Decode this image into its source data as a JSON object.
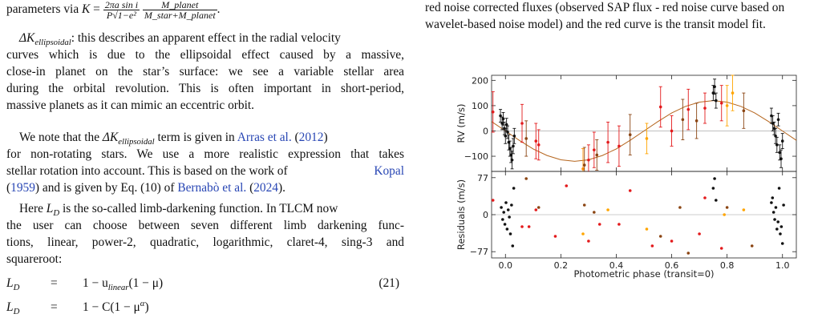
{
  "left_column": {
    "formula_line": {
      "prefix": "parameters via ",
      "lhs": "K",
      "eq": "=",
      "frac1_num": "2πa sin i",
      "frac1_den": "P√1−e²",
      "frac2_num": "M_planet",
      "frac2_den": "M_star+M_planet",
      "suffix": "."
    },
    "ellipsoidal_term": {
      "symbol": "ΔK",
      "subscript": "ellipsoidal",
      "lines": [
        ": this describes an apparent effect in the radial velocity",
        "curves which is due to the ellipsoidal effect caused by a massive,",
        "close-in planet on the star’s surface: we see a variable stellar area",
        "during the orbital revolution. This is often important in short-period,",
        "massive planets as it can mimic an eccentric orbit."
      ]
    },
    "note_paragraph": {
      "l1_a": "We note that the ",
      "l1_sym": "ΔK",
      "l1_sub": "ellipsoidal",
      "l1_b": " term is given in ",
      "l1_cite": "Arras et al.",
      "l1_c": " (",
      "l1_year": "2012",
      "l1_d": ")",
      "l2": "for non-rotating stars. We use a more realistic expression that takes",
      "l3_a": "stellar rotation into account. This is based on the work of ",
      "l3_cite": "Kopal",
      "l4_a": "(",
      "l4_year": "1959",
      "l4_b": ") and is given by Eq. (10) of ",
      "l4_cite": "Bernabò et al.",
      "l4_c": " (",
      "l4_year2": "2024",
      "l4_d": ")."
    },
    "limb_paragraph": {
      "l1_a": "Here ",
      "l1_sym": "L",
      "l1_sub": "D",
      "l1_b": " is the so-called limb-darkening function. In TLCM now",
      "l2": "the user can choose between seven different limb darkening func-",
      "l3": "tions, linear, power-2, quadratic, logarithmic, claret-4, sing-3 and",
      "l4": "squareroot:"
    },
    "equations": [
      {
        "lhs": "L",
        "lhs_sub": "D",
        "op": "=",
        "rhs_a": "1 − u",
        "rhs_sub": "linear",
        "rhs_b": "(1 − μ)",
        "number": "(21)"
      },
      {
        "lhs": "L",
        "lhs_sub": "D",
        "op": "=",
        "rhs_a": "1 − C(1 − μ",
        "rhs_sup": "α",
        "rhs_b": ")",
        "number": ""
      }
    ]
  },
  "right_column": {
    "caption_lines": [
      "red noise corrected fluxes (observed SAP flux - red noise curve based on",
      "wavelet-based noise model) and the red curve is the transit model fit."
    ]
  },
  "chart_data": {
    "type": "scatter",
    "title": "",
    "xlabel": "Photometric phase (transit=0)",
    "x_ticks": [
      "0.0",
      "0.2",
      "0.4",
      "0.6",
      "0.8",
      "1.0"
    ],
    "xlim": [
      -0.05,
      1.05
    ],
    "panels": [
      {
        "name": "rv",
        "ylabel": "RV (m/s)",
        "ylim": [
          -160,
          220
        ],
        "y_ticks": [
          "200",
          "100",
          "0",
          "−100"
        ],
        "y_tick_values": [
          200,
          100,
          0,
          -100
        ],
        "model_color": "#b5651d",
        "model_amplitude": 120,
        "model_x": [
          -0.05,
          0.0,
          0.05,
          0.1,
          0.15,
          0.2,
          0.25,
          0.3,
          0.35,
          0.4,
          0.45,
          0.5,
          0.55,
          0.6,
          0.65,
          0.7,
          0.75,
          0.8,
          0.85,
          0.9,
          0.95,
          1.0,
          1.05
        ],
        "model_y": [
          37,
          0,
          -37,
          -71,
          -97,
          -114,
          -120,
          -114,
          -97,
          -71,
          -37,
          0,
          37,
          71,
          97,
          114,
          120,
          114,
          97,
          71,
          37,
          0,
          -37
        ],
        "points": [
          {
            "x": -0.045,
            "y": 75,
            "err": 80,
            "c": "#e31a1c"
          },
          {
            "x": -0.018,
            "y": 60,
            "err": 25,
            "c": "#111111"
          },
          {
            "x": -0.012,
            "y": 30,
            "err": 25,
            "c": "#111111"
          },
          {
            "x": -0.008,
            "y": 48,
            "err": 25,
            "c": "#111111"
          },
          {
            "x": -0.004,
            "y": 10,
            "err": 25,
            "c": "#111111"
          },
          {
            "x": 0.0,
            "y": -20,
            "err": 30,
            "c": "#111111"
          },
          {
            "x": 0.004,
            "y": 25,
            "err": 25,
            "c": "#111111"
          },
          {
            "x": 0.008,
            "y": -5,
            "err": 25,
            "c": "#111111"
          },
          {
            "x": 0.012,
            "y": -45,
            "err": 30,
            "c": "#111111"
          },
          {
            "x": 0.016,
            "y": -70,
            "err": 30,
            "c": "#111111"
          },
          {
            "x": 0.02,
            "y": -95,
            "err": 30,
            "c": "#111111"
          },
          {
            "x": 0.024,
            "y": -115,
            "err": 35,
            "c": "#111111"
          },
          {
            "x": 0.028,
            "y": -60,
            "err": 30,
            "c": "#111111"
          },
          {
            "x": 0.032,
            "y": -20,
            "err": 30,
            "c": "#111111"
          },
          {
            "x": 0.06,
            "y": 30,
            "err": 75,
            "c": "#e31a1c"
          },
          {
            "x": 0.075,
            "y": -30,
            "err": 70,
            "c": "#8b4513"
          },
          {
            "x": 0.11,
            "y": -40,
            "err": 70,
            "c": "#e31a1c"
          },
          {
            "x": 0.12,
            "y": -55,
            "err": 60,
            "c": "#e31a1c"
          },
          {
            "x": 0.28,
            "y": -150,
            "err": 80,
            "c": "#ff8c00"
          },
          {
            "x": 0.285,
            "y": -135,
            "err": 70,
            "c": "#8b4513"
          },
          {
            "x": 0.3,
            "y": -115,
            "err": 60,
            "c": "#e31a1c"
          },
          {
            "x": 0.32,
            "y": -75,
            "err": 70,
            "c": "#e31a1c"
          },
          {
            "x": 0.33,
            "y": -95,
            "err": 60,
            "c": "#8b4513"
          },
          {
            "x": 0.37,
            "y": -45,
            "err": 80,
            "c": "#e31a1c"
          },
          {
            "x": 0.41,
            "y": -60,
            "err": 80,
            "c": "#e31a1c"
          },
          {
            "x": 0.45,
            "y": -15,
            "err": 80,
            "c": "#8b4513"
          },
          {
            "x": 0.51,
            "y": -30,
            "err": 60,
            "c": "#ffa500"
          },
          {
            "x": 0.56,
            "y": 95,
            "err": 80,
            "c": "#e31a1c"
          },
          {
            "x": 0.6,
            "y": 0,
            "err": 60,
            "c": "#e31a1c"
          },
          {
            "x": 0.64,
            "y": 45,
            "err": 80,
            "c": "#8b4513"
          },
          {
            "x": 0.66,
            "y": 85,
            "err": 80,
            "c": "#e31a1c"
          },
          {
            "x": 0.69,
            "y": 40,
            "err": 70,
            "c": "#8b4513"
          },
          {
            "x": 0.72,
            "y": 90,
            "err": 60,
            "c": "#e31a1c"
          },
          {
            "x": 0.75,
            "y": 150,
            "err": 30,
            "c": "#111111"
          },
          {
            "x": 0.755,
            "y": 175,
            "err": 30,
            "c": "#111111"
          },
          {
            "x": 0.76,
            "y": 120,
            "err": 30,
            "c": "#111111"
          },
          {
            "x": 0.78,
            "y": 110,
            "err": 70,
            "c": "#e31a1c"
          },
          {
            "x": 0.8,
            "y": 100,
            "err": 80,
            "c": "#ffa500"
          },
          {
            "x": 0.82,
            "y": 150,
            "err": 70,
            "c": "#ffa500"
          },
          {
            "x": 0.86,
            "y": 80,
            "err": 70,
            "c": "#8b4513"
          },
          {
            "x": 0.96,
            "y": 60,
            "err": 30,
            "c": "#111111"
          },
          {
            "x": 0.965,
            "y": 30,
            "err": 30,
            "c": "#111111"
          },
          {
            "x": 0.97,
            "y": 10,
            "err": 25,
            "c": "#111111"
          },
          {
            "x": 0.975,
            "y": -20,
            "err": 30,
            "c": "#111111"
          },
          {
            "x": 0.98,
            "y": -55,
            "err": 30,
            "c": "#111111"
          },
          {
            "x": 0.985,
            "y": 45,
            "err": 25,
            "c": "#111111"
          },
          {
            "x": 0.99,
            "y": -85,
            "err": 30,
            "c": "#111111"
          },
          {
            "x": 0.995,
            "y": -110,
            "err": 35,
            "c": "#111111"
          },
          {
            "x": 1.0,
            "y": -40,
            "err": 30,
            "c": "#111111"
          }
        ]
      },
      {
        "name": "residuals",
        "ylabel": "Residuals (m/s)",
        "ylim": [
          -90,
          90
        ],
        "y_ticks": [
          "77",
          "0",
          "−77"
        ],
        "y_tick_values": [
          77,
          0,
          -77
        ],
        "points": [
          {
            "x": -0.045,
            "y": 30,
            "c": "#e31a1c"
          },
          {
            "x": -0.015,
            "y": 15,
            "c": "#111111"
          },
          {
            "x": -0.01,
            "y": -10,
            "c": "#111111"
          },
          {
            "x": -0.006,
            "y": 5,
            "c": "#111111"
          },
          {
            "x": -0.002,
            "y": -20,
            "c": "#111111"
          },
          {
            "x": 0.002,
            "y": 25,
            "c": "#111111"
          },
          {
            "x": 0.006,
            "y": -30,
            "c": "#111111"
          },
          {
            "x": 0.01,
            "y": 10,
            "c": "#111111"
          },
          {
            "x": 0.014,
            "y": -5,
            "c": "#111111"
          },
          {
            "x": 0.018,
            "y": -40,
            "c": "#111111"
          },
          {
            "x": 0.022,
            "y": 20,
            "c": "#111111"
          },
          {
            "x": 0.026,
            "y": -65,
            "c": "#111111"
          },
          {
            "x": 0.03,
            "y": 55,
            "c": "#111111"
          },
          {
            "x": 0.06,
            "y": -25,
            "c": "#e31a1c"
          },
          {
            "x": 0.075,
            "y": 75,
            "c": "#8b4513"
          },
          {
            "x": 0.085,
            "y": -25,
            "c": "#e31a1c"
          },
          {
            "x": 0.11,
            "y": 10,
            "c": "#e31a1c"
          },
          {
            "x": 0.12,
            "y": 15,
            "c": "#8b4513"
          },
          {
            "x": 0.18,
            "y": -45,
            "c": "#e31a1c"
          },
          {
            "x": 0.22,
            "y": 60,
            "c": "#e31a1c"
          },
          {
            "x": 0.28,
            "y": -40,
            "c": "#ffa500"
          },
          {
            "x": 0.285,
            "y": 20,
            "c": "#8b4513"
          },
          {
            "x": 0.3,
            "y": -55,
            "c": "#e31a1c"
          },
          {
            "x": 0.32,
            "y": 5,
            "c": "#8b4513"
          },
          {
            "x": 0.34,
            "y": -20,
            "c": "#e31a1c"
          },
          {
            "x": 0.37,
            "y": 10,
            "c": "#ffa500"
          },
          {
            "x": 0.41,
            "y": -20,
            "c": "#e31a1c"
          },
          {
            "x": 0.45,
            "y": 50,
            "c": "#e31a1c"
          },
          {
            "x": 0.51,
            "y": -30,
            "c": "#ffa500"
          },
          {
            "x": 0.53,
            "y": -65,
            "c": "#e31a1c"
          },
          {
            "x": 0.56,
            "y": -45,
            "c": "#8b4513"
          },
          {
            "x": 0.6,
            "y": -55,
            "c": "#e31a1c"
          },
          {
            "x": 0.63,
            "y": 15,
            "c": "#8b4513"
          },
          {
            "x": 0.66,
            "y": -80,
            "c": "#8b4513"
          },
          {
            "x": 0.7,
            "y": -40,
            "c": "#e31a1c"
          },
          {
            "x": 0.72,
            "y": 35,
            "c": "#e31a1c"
          },
          {
            "x": 0.75,
            "y": 55,
            "c": "#111111"
          },
          {
            "x": 0.755,
            "y": 75,
            "c": "#111111"
          },
          {
            "x": 0.76,
            "y": 30,
            "c": "#111111"
          },
          {
            "x": 0.78,
            "y": -70,
            "c": "#e31a1c"
          },
          {
            "x": 0.79,
            "y": 0,
            "c": "#ffa500"
          },
          {
            "x": 0.8,
            "y": 15,
            "c": "#8b4513"
          },
          {
            "x": 0.86,
            "y": 10,
            "c": "#ffa500"
          },
          {
            "x": 0.89,
            "y": -65,
            "c": "#8b4513"
          },
          {
            "x": 0.96,
            "y": 25,
            "c": "#111111"
          },
          {
            "x": 0.964,
            "y": 35,
            "c": "#111111"
          },
          {
            "x": 0.968,
            "y": 5,
            "c": "#111111"
          },
          {
            "x": 0.972,
            "y": -10,
            "c": "#111111"
          },
          {
            "x": 0.976,
            "y": 15,
            "c": "#111111"
          },
          {
            "x": 0.98,
            "y": -30,
            "c": "#111111"
          },
          {
            "x": 0.984,
            "y": -15,
            "c": "#111111"
          },
          {
            "x": 0.988,
            "y": 55,
            "c": "#111111"
          },
          {
            "x": 0.992,
            "y": -40,
            "c": "#111111"
          },
          {
            "x": 0.996,
            "y": -25,
            "c": "#111111"
          },
          {
            "x": 1.0,
            "y": -60,
            "c": "#111111"
          },
          {
            "x": 1.004,
            "y": 20,
            "c": "#111111"
          }
        ]
      }
    ]
  }
}
